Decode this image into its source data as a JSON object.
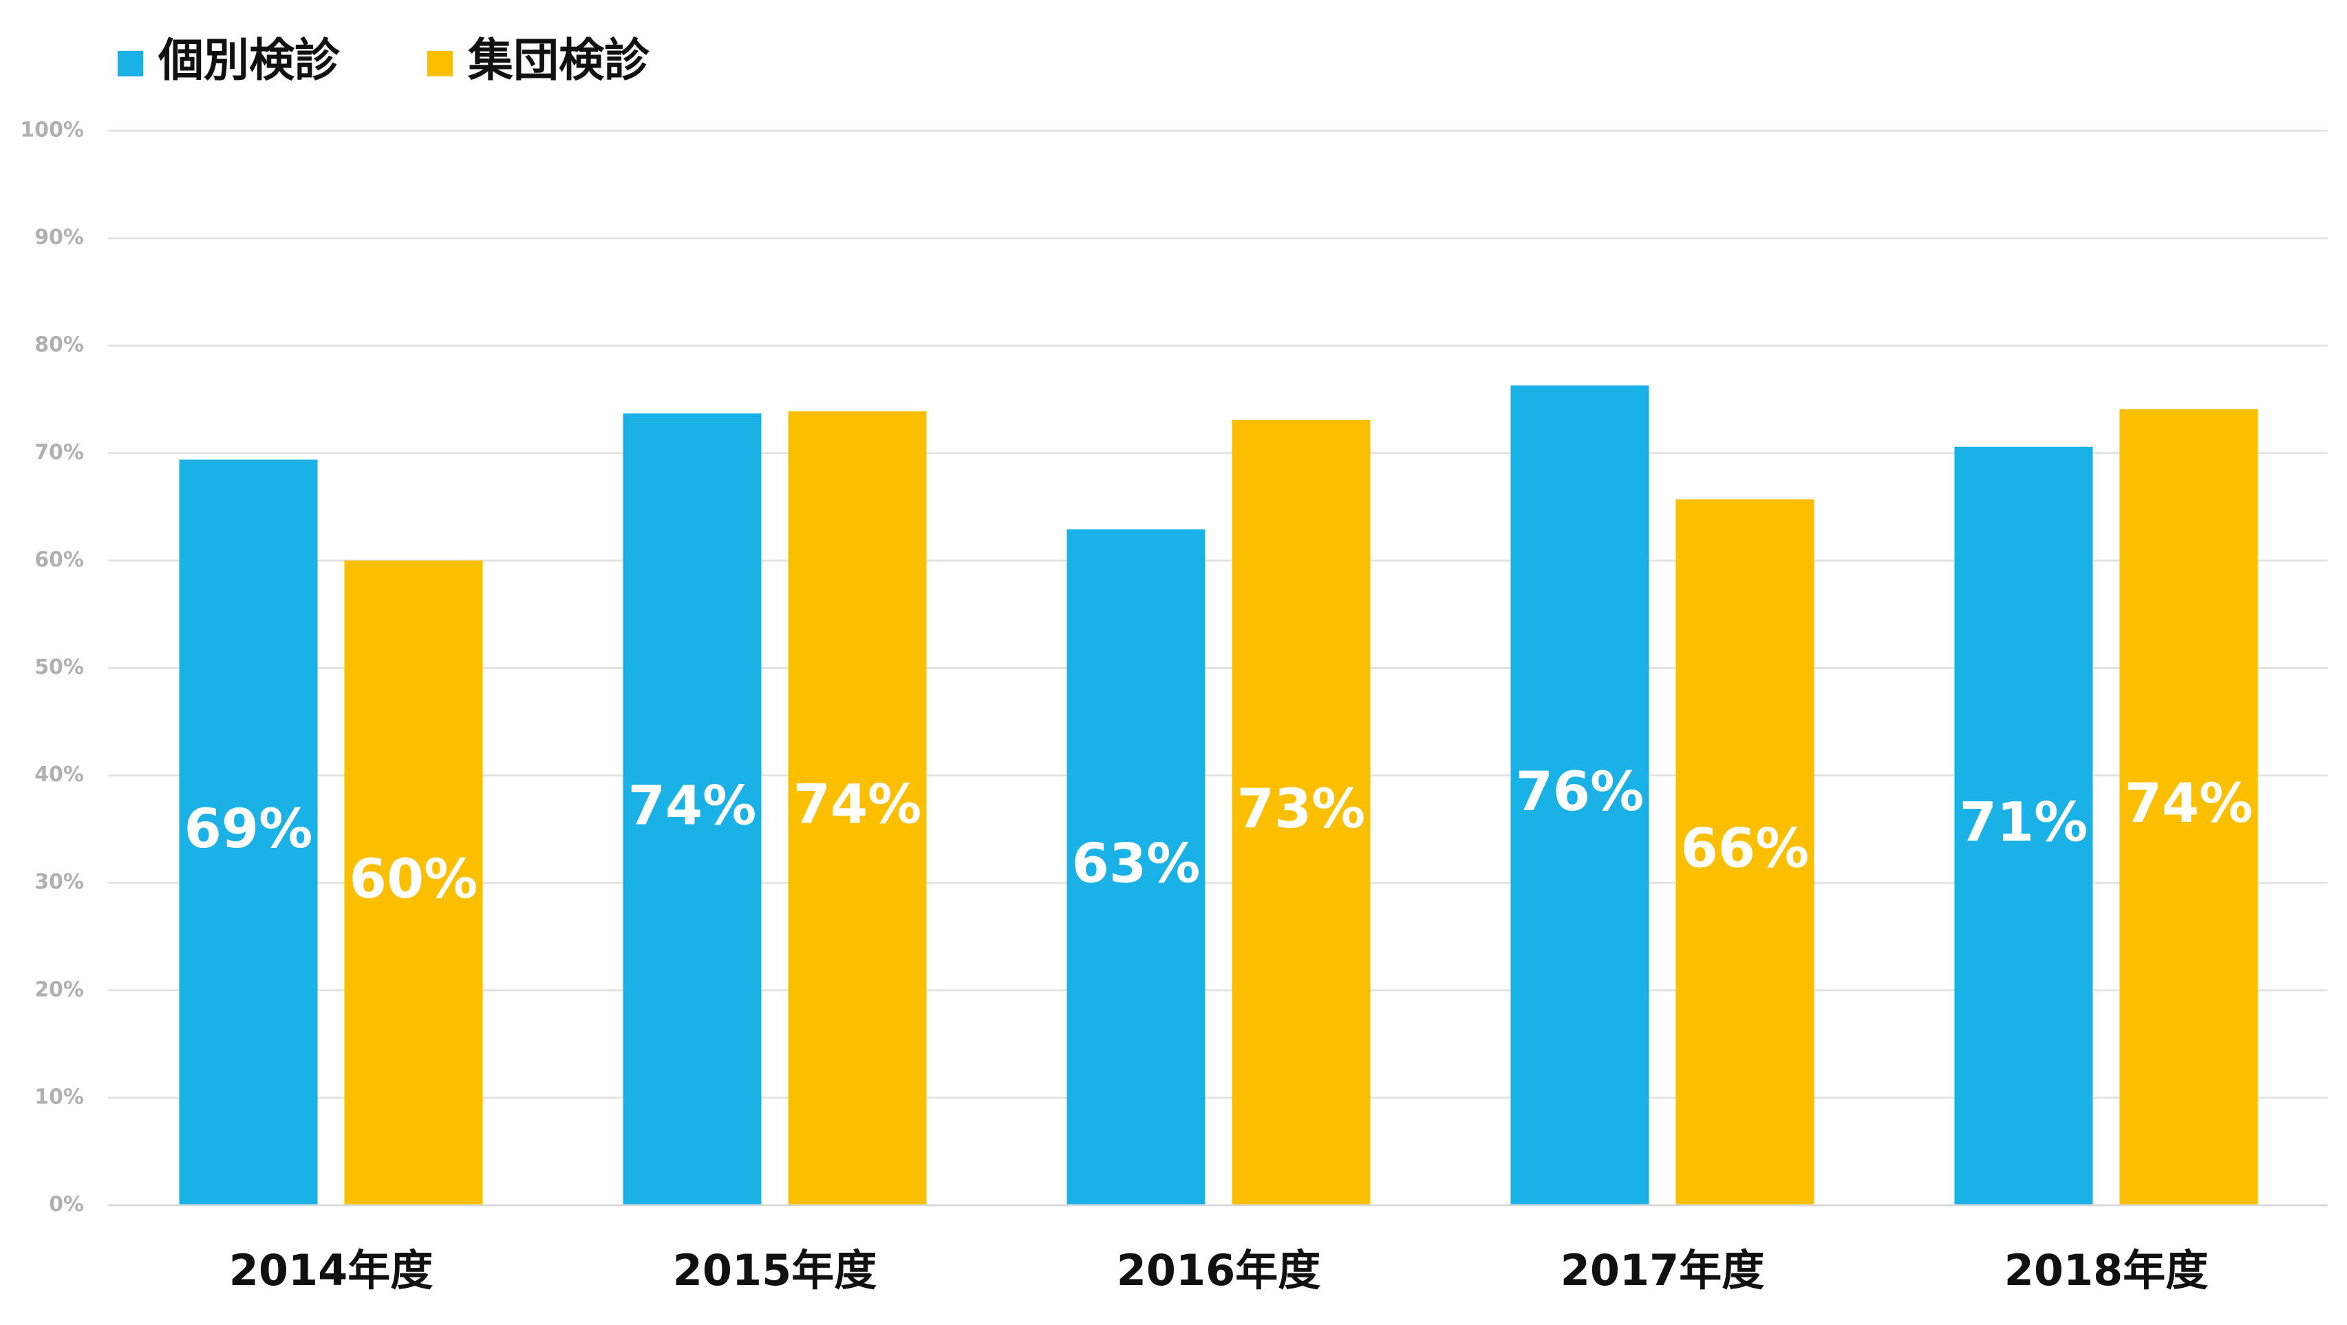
{
  "chart_data": {
    "type": "bar",
    "categories": [
      "2014年度",
      "2015年度",
      "2016年度",
      "2017年度",
      "2018年度"
    ],
    "series": [
      {
        "name": "個別検診",
        "color": "#1ab1e6",
        "values": [
          69.4,
          73.7,
          62.9,
          76.3,
          70.6
        ],
        "value_labels": [
          "69%",
          "74%",
          "63%",
          "76%",
          "71%"
        ]
      },
      {
        "name": "集団検診",
        "color": "#fcbf00",
        "values": [
          60,
          73.9,
          73.1,
          65.7,
          74.1
        ],
        "value_labels": [
          "60%",
          "74%",
          "73%",
          "66%",
          "74%"
        ]
      }
    ],
    "ylim": [
      0,
      100
    ],
    "yticks": [
      {
        "value": 0,
        "label": "0%"
      },
      {
        "value": 10,
        "label": "10%"
      },
      {
        "value": 20,
        "label": "20%"
      },
      {
        "value": 30,
        "label": "30%"
      },
      {
        "value": 40,
        "label": "40%"
      },
      {
        "value": 50,
        "label": "50%"
      },
      {
        "value": 60,
        "label": "60%"
      },
      {
        "value": 70,
        "label": "70%"
      },
      {
        "value": 80,
        "label": "80%"
      },
      {
        "value": 90,
        "label": "90%"
      },
      {
        "value": 100,
        "label": "100%"
      }
    ],
    "grid": true,
    "legend": "top-left"
  }
}
